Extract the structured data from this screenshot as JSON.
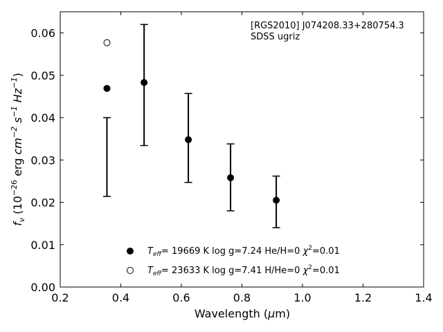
{
  "chart_data": {
    "type": "scatter",
    "title": "",
    "xlabel": {
      "prefix": "Wavelength (",
      "symbol": "μ",
      "suffix": "m)"
    },
    "ylabel": {
      "f": "f",
      "f_sub": "ν",
      "open": " (10",
      "exp1": "−26",
      "mid1": " erg ",
      "cm": "cm",
      "exp2": "−2",
      "s": " s",
      "exp3": "−1",
      "hz": " Hz",
      "exp4": "−1",
      "close": ")"
    },
    "xlim": [
      0.2,
      1.4
    ],
    "ylim": [
      0.0,
      0.065
    ],
    "xticks": [
      "0.2",
      "0.4",
      "0.6",
      "0.8",
      "1.0",
      "1.2",
      "1.4"
    ],
    "yticks": [
      "0.00",
      "0.01",
      "0.02",
      "0.03",
      "0.04",
      "0.05",
      "0.06"
    ],
    "grid": false,
    "annotation": {
      "line1": "[RGS2010] J074208.33+280754.3",
      "line2": "SDSS ugriz"
    },
    "observed": {
      "x": [
        0.3543,
        0.477,
        0.6231,
        0.7625,
        0.9134
      ],
      "y": [
        0.0307,
        0.0477,
        0.0352,
        0.0259,
        0.0201
      ],
      "yerr": [
        0.0093,
        0.0143,
        0.0105,
        0.0079,
        0.0061
      ]
    },
    "series": [
      {
        "marker": "filled",
        "teff_label": "T",
        "teff_sub": "eff",
        "text": "= 19669 K  log g=7.24  He/H=0  ",
        "chi": "χ",
        "chi_exp": "2",
        "chi_val": "=0.01",
        "x": [
          0.3543,
          0.477,
          0.6231,
          0.7625,
          0.9134
        ],
        "y": [
          0.0469,
          0.0483,
          0.0348,
          0.0258,
          0.0205
        ]
      },
      {
        "marker": "open",
        "teff_label": "T",
        "teff_sub": "eff",
        "text": "= 23633 K  log g=7.41  H/He=0  ",
        "chi": "χ",
        "chi_exp": "2",
        "chi_val": "=0.01",
        "x": [
          0.3543
        ],
        "y": [
          0.0577
        ]
      }
    ],
    "legend_position": "bottom-center"
  }
}
